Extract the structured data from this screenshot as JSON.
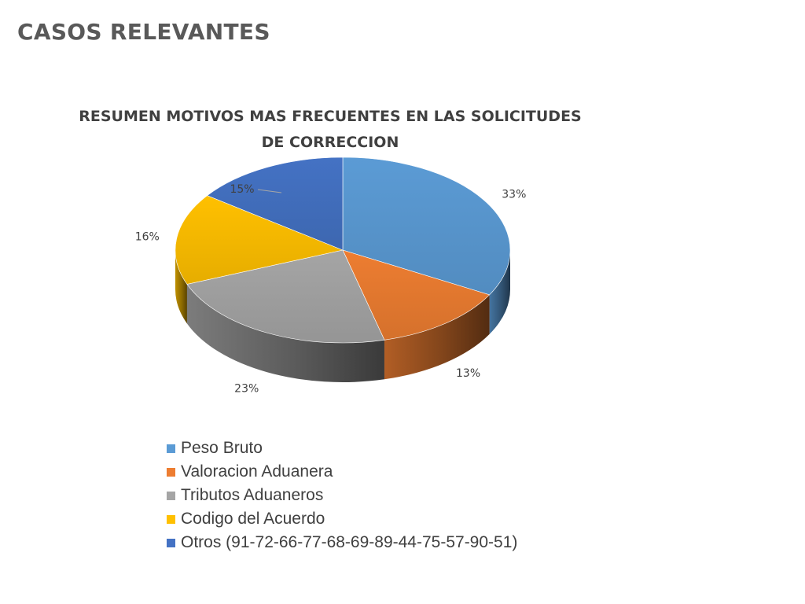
{
  "slide": {
    "title": "CASOS RELEVANTES"
  },
  "chart_data": {
    "type": "pie",
    "title_lines": [
      "RESUMEN MOTIVOS MAS FRECUENTES EN LAS SOLICITUDES",
      "DE CORRECCION"
    ],
    "slices": [
      {
        "label": "Peso Bruto",
        "value": 33,
        "display": "33%",
        "color": "#5B9BD5"
      },
      {
        "label": "Valoracion Aduanera",
        "value": 13,
        "display": "13%",
        "color": "#ED7D31"
      },
      {
        "label": "Tributos Aduaneros",
        "value": 23,
        "display": "23%",
        "color": "#A5A5A5"
      },
      {
        "label": "Codigo del Acuerdo",
        "value": 16,
        "display": "16%",
        "color": "#FFC000"
      },
      {
        "label": "Otros (91-72-66-77-68-69-89-44-75-57-90-51)",
        "value": 15,
        "display": "15%",
        "color": "#4472C4"
      }
    ],
    "legend_position": "bottom",
    "style": "3d"
  }
}
